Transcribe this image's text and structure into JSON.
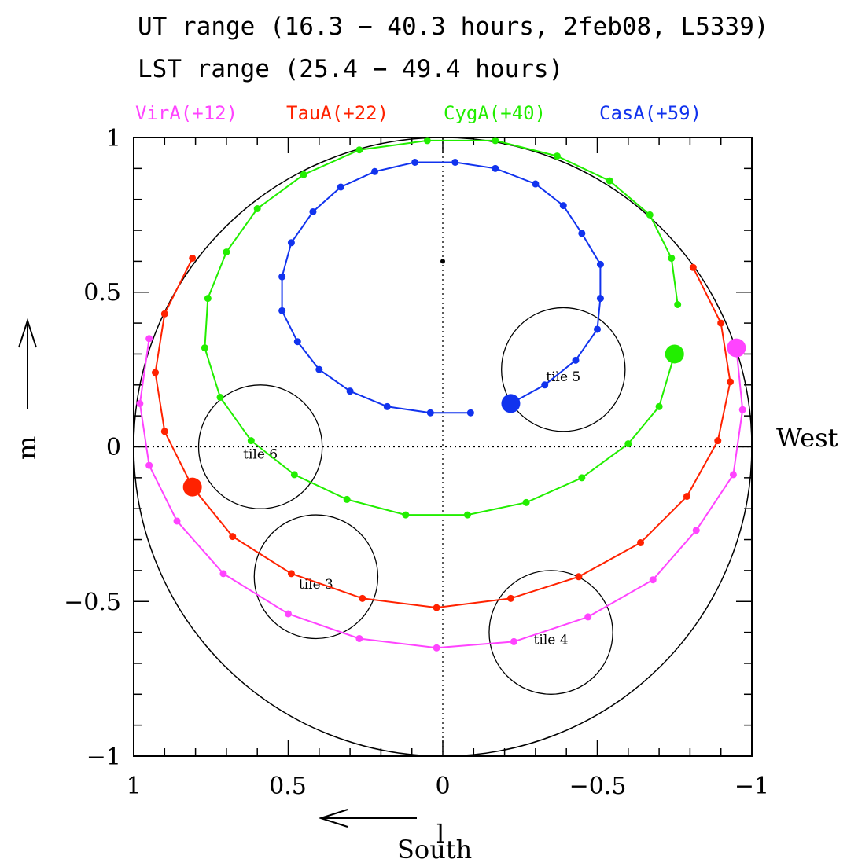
{
  "chart_data": {
    "type": "scatter",
    "title_lines": [
      "UT range (16.3 − 40.3 hours, 2feb08, L5339)",
      "LST range (25.4 − 49.4 hours)"
    ],
    "xlabel": "l",
    "ylabel": "m",
    "annotations": {
      "south": "South",
      "west": "West"
    },
    "xlim": [
      1,
      -1
    ],
    "ylim": [
      -1,
      1
    ],
    "x_ticks": [
      1,
      0.5,
      0,
      -0.5,
      -1
    ],
    "x_tick_labels": [
      "1",
      "0.5",
      "0",
      "−0.5",
      "−1"
    ],
    "y_ticks": [
      1,
      0.5,
      0,
      -0.5,
      -1
    ],
    "y_tick_labels": [
      "1",
      "0.5",
      "0",
      "−0.5",
      "−1"
    ],
    "grid": false,
    "horizon_circle": {
      "center": [
        0,
        0
      ],
      "radius": 1
    },
    "zenith_marker": [
      0,
      0.6
    ],
    "legend_position": "top",
    "tiles": [
      {
        "label": "tile 6",
        "center": [
          0.59,
          0.0
        ],
        "radius": 0.2
      },
      {
        "label": "tile 5",
        "center": [
          -0.39,
          0.25
        ],
        "radius": 0.2
      },
      {
        "label": "tile 3",
        "center": [
          0.41,
          -0.42
        ],
        "radius": 0.2
      },
      {
        "label": "tile 4",
        "center": [
          -0.35,
          -0.6
        ],
        "radius": 0.2
      }
    ],
    "series": [
      {
        "name": "VirA(+12)",
        "color": "#ff44ff",
        "current": [
          -0.95,
          0.32
        ],
        "points": [
          [
            -0.95,
            0.32
          ],
          [
            -0.97,
            0.12
          ],
          [
            -0.94,
            -0.09
          ],
          [
            -0.82,
            -0.27
          ],
          [
            -0.68,
            -0.43
          ],
          [
            -0.47,
            -0.55
          ],
          [
            -0.23,
            -0.63
          ],
          [
            0.02,
            -0.65
          ],
          [
            0.27,
            -0.62
          ],
          [
            0.5,
            -0.54
          ],
          [
            0.71,
            -0.41
          ],
          [
            0.86,
            -0.24
          ],
          [
            0.95,
            -0.06
          ],
          [
            0.98,
            0.14
          ],
          [
            0.95,
            0.35
          ]
        ]
      },
      {
        "name": "TauA(+22)",
        "color": "#ff2200",
        "current": [
          0.81,
          -0.13
        ],
        "points": [
          [
            0.81,
            0.61
          ],
          [
            0.9,
            0.43
          ],
          [
            0.93,
            0.24
          ],
          [
            0.9,
            0.05
          ],
          [
            0.81,
            -0.13
          ],
          [
            0.68,
            -0.29
          ],
          [
            0.49,
            -0.41
          ],
          [
            0.26,
            -0.49
          ],
          [
            0.02,
            -0.52
          ],
          [
            -0.22,
            -0.49
          ],
          [
            -0.44,
            -0.42
          ],
          [
            -0.64,
            -0.31
          ],
          [
            -0.79,
            -0.16
          ],
          [
            -0.89,
            0.02
          ],
          [
            -0.93,
            0.21
          ],
          [
            -0.9,
            0.4
          ],
          [
            -0.81,
            0.58
          ]
        ]
      },
      {
        "name": "CygA(+40)",
        "color": "#22ee00",
        "current": [
          -0.75,
          0.3
        ],
        "points": [
          [
            -0.75,
            0.3
          ],
          [
            -0.7,
            0.13
          ],
          [
            -0.6,
            0.01
          ],
          [
            -0.45,
            -0.1
          ],
          [
            -0.27,
            -0.18
          ],
          [
            -0.08,
            -0.22
          ],
          [
            0.12,
            -0.22
          ],
          [
            0.31,
            -0.17
          ],
          [
            0.48,
            -0.09
          ],
          [
            0.62,
            0.02
          ],
          [
            0.72,
            0.16
          ],
          [
            0.77,
            0.32
          ],
          [
            0.76,
            0.48
          ],
          [
            0.7,
            0.63
          ],
          [
            0.6,
            0.77
          ],
          [
            0.45,
            0.88
          ],
          [
            0.27,
            0.96
          ],
          [
            0.05,
            0.99
          ],
          [
            -0.17,
            0.99
          ],
          [
            -0.37,
            0.94
          ],
          [
            -0.54,
            0.86
          ],
          [
            -0.67,
            0.75
          ],
          [
            -0.74,
            0.61
          ],
          [
            -0.76,
            0.46
          ]
        ]
      },
      {
        "name": "CasA(+59)",
        "color": "#1133ee",
        "current": [
          -0.22,
          0.14
        ],
        "points": [
          [
            -0.22,
            0.14
          ],
          [
            -0.33,
            0.2
          ],
          [
            -0.43,
            0.28
          ],
          [
            -0.5,
            0.38
          ],
          [
            -0.51,
            0.48
          ],
          [
            -0.51,
            0.59
          ],
          [
            -0.45,
            0.69
          ],
          [
            -0.39,
            0.78
          ],
          [
            -0.3,
            0.85
          ],
          [
            -0.17,
            0.9
          ],
          [
            -0.04,
            0.92
          ],
          [
            0.09,
            0.92
          ],
          [
            0.22,
            0.89
          ],
          [
            0.33,
            0.84
          ],
          [
            0.42,
            0.76
          ],
          [
            0.49,
            0.66
          ],
          [
            0.52,
            0.55
          ],
          [
            0.52,
            0.44
          ],
          [
            0.47,
            0.34
          ],
          [
            0.4,
            0.25
          ],
          [
            0.3,
            0.18
          ],
          [
            0.18,
            0.13
          ],
          [
            0.04,
            0.11
          ],
          [
            -0.09,
            0.11
          ]
        ]
      }
    ]
  }
}
